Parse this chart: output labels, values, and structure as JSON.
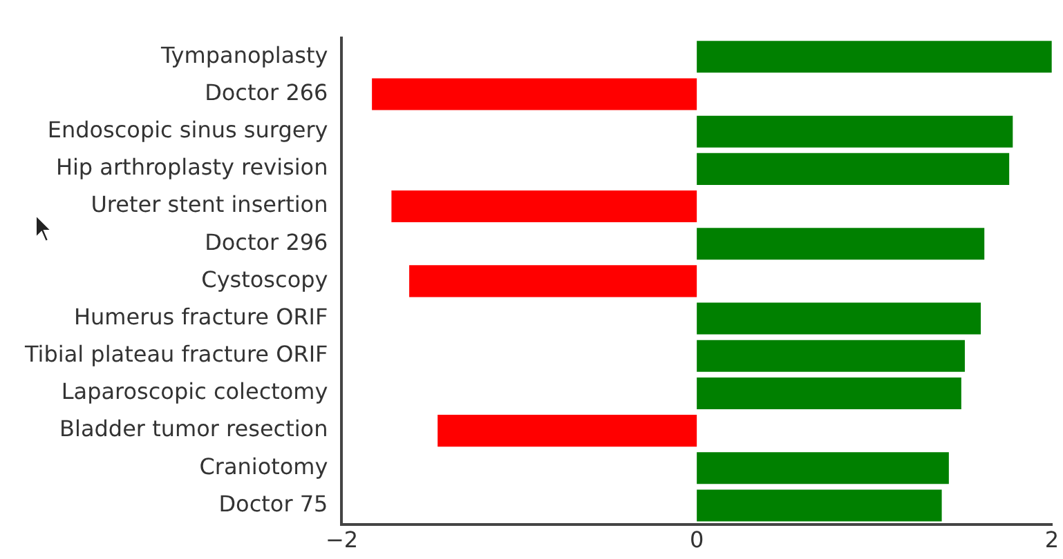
{
  "chart_data": {
    "type": "bar",
    "orientation": "horizontal",
    "categories": [
      "Tympanoplasty",
      "Doctor 266",
      "Endoscopic sinus surgery",
      "Hip arthroplasty revision",
      "Ureter stent insertion",
      "Doctor 296",
      "Cystoscopy",
      "Humerus fracture ORIF",
      "Tibial plateau fracture ORIF",
      "Laparoscopic colectomy",
      "Bladder tumor resection",
      "Craniotomy",
      "Doctor 75"
    ],
    "values": [
      2.0,
      -1.83,
      1.78,
      1.76,
      -1.72,
      1.62,
      -1.62,
      1.6,
      1.51,
      1.49,
      -1.46,
      1.42,
      1.38
    ],
    "colors": [
      "#008000",
      "#ff0000",
      "#008000",
      "#008000",
      "#ff0000",
      "#008000",
      "#ff0000",
      "#008000",
      "#008000",
      "#008000",
      "#ff0000",
      "#008000",
      "#008000"
    ],
    "xlim": [
      -2,
      2
    ],
    "xticks": [
      -2,
      0,
      2
    ],
    "grid": false,
    "legend": false
  }
}
